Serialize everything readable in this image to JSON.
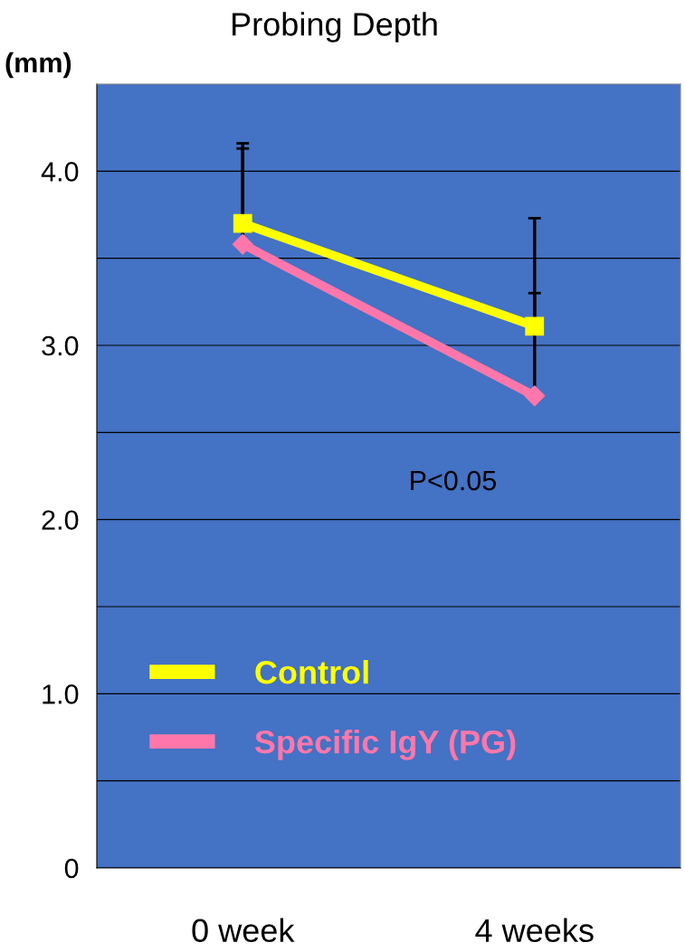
{
  "chart_data": {
    "type": "line",
    "title": "Probing Depth",
    "ylabel": "(mm)",
    "categories": [
      "0 week",
      "4 weeks"
    ],
    "series": [
      {
        "name": "Control",
        "color": "#ffff00",
        "marker": "square",
        "values": [
          3.7,
          3.11
        ],
        "errors": [
          [
            3.7,
            4.16
          ],
          [
            3.11,
            3.73
          ]
        ]
      },
      {
        "name": "Specific IgY (PG)",
        "color": "#ff77aa",
        "marker": "diamond",
        "values": [
          3.58,
          2.71
        ],
        "errors": [
          [
            3.58,
            4.13
          ],
          [
            2.71,
            3.3
          ]
        ]
      }
    ],
    "ylim": [
      0,
      4.5
    ],
    "yticks": [
      0,
      {
        "value": 0.5,
        "label": null
      },
      {
        "value": 1,
        "label": "1.0"
      },
      {
        "value": 1.5,
        "label": null
      },
      {
        "value": 2,
        "label": "2.0"
      },
      {
        "value": 2.5,
        "label": null
      },
      {
        "value": 3,
        "label": "3.0"
      },
      {
        "value": 3.5,
        "label": null
      },
      {
        "value": 4,
        "label": "4.0"
      }
    ],
    "grid": "y",
    "legend": "bottom left",
    "line_style": "solid",
    "annotations": [
      "P<0.05"
    ]
  }
}
